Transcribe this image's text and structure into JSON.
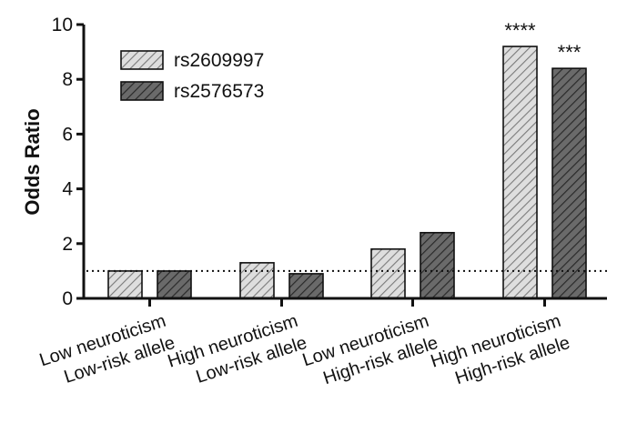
{
  "chart_data": {
    "type": "bar",
    "categories": [
      [
        "Low neuroticism",
        "Low-risk allele"
      ],
      [
        "High neuroticism",
        "Low-risk allele"
      ],
      [
        "Low neuroticism",
        "High-risk allele"
      ],
      [
        "High neuroticism",
        "High-risk allele"
      ]
    ],
    "series": [
      {
        "name": "rs2609997",
        "values": [
          1.0,
          1.3,
          1.8,
          9.2
        ],
        "pattern": "hatch-light",
        "color": "#d8d8d8"
      },
      {
        "name": "rs2576573",
        "values": [
          1.0,
          0.9,
          2.4,
          8.4
        ],
        "pattern": "hatch-dark",
        "color": "#5a5a5a"
      }
    ],
    "significance": [
      {
        "category_index": 3,
        "series_index": 0,
        "label": "****"
      },
      {
        "category_index": 3,
        "series_index": 1,
        "label": "***"
      }
    ],
    "ylabel": "Odds Ratio",
    "xlabel": "",
    "ylim": [
      0,
      10
    ],
    "yticks": [
      0,
      2,
      4,
      6,
      8,
      10
    ],
    "reference_line": {
      "y": 1,
      "style": "dotted"
    },
    "legend": {
      "position": "top-left"
    },
    "grid": false
  }
}
